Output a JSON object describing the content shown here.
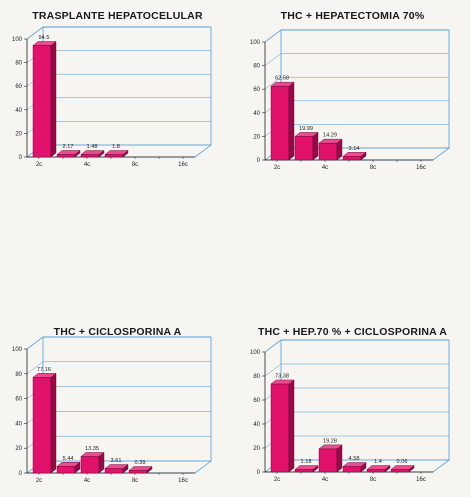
{
  "chart_data": [
    {
      "type": "bar",
      "title": "TRASPLANTE HEPATOCELULAR",
      "categories": [
        "2c",
        "",
        "4c",
        "",
        "8c",
        "",
        "16c"
      ],
      "values": [
        94.5,
        2.17,
        1.48,
        1.8,
        null,
        null,
        null
      ],
      "value_labels": [
        "94.5",
        "2.17",
        "1.48",
        "1.8",
        "",
        "",
        ""
      ],
      "yticks": [
        "0",
        "20",
        "40",
        "60",
        "80",
        "100"
      ],
      "ylim": [
        0,
        100
      ],
      "grid": true,
      "xlabel": "",
      "ylabel": "",
      "bar_color": "#e0126b"
    },
    {
      "type": "bar",
      "title": "THC + HEPATECTOMIA 70%",
      "categories": [
        "2c",
        "",
        "4c",
        "",
        "8c",
        "",
        "16c"
      ],
      "values": [
        62.58,
        19.99,
        14.29,
        3.14,
        null,
        null,
        null
      ],
      "value_labels": [
        "62.58",
        "19.99",
        "14.29",
        "3.14",
        "",
        "",
        ""
      ],
      "yticks": [
        "0",
        "20",
        "40",
        "60",
        "80",
        "100"
      ],
      "ylim": [
        0,
        100
      ],
      "grid": true,
      "xlabel": "",
      "ylabel": "",
      "bar_color": "#e0126b"
    },
    {
      "type": "bar",
      "title": "THC + CICLOSPORINA A",
      "categories": [
        "2c",
        "",
        "4c",
        "",
        "8c",
        "",
        "16c"
      ],
      "values": [
        77.16,
        5.44,
        13.35,
        3.61,
        0.39,
        null,
        null
      ],
      "value_labels": [
        "77.16",
        "5.44",
        "13.35",
        "3.61",
        "0.39",
        "",
        ""
      ],
      "yticks": [
        "0",
        "20",
        "40",
        "60",
        "80",
        "100"
      ],
      "ylim": [
        0,
        100
      ],
      "grid": true,
      "xlabel": "",
      "ylabel": "",
      "bar_color": "#e0126b"
    },
    {
      "type": "bar",
      "title": "THC + HEP.70 % + CICLOSPORINA A",
      "categories": [
        "2c",
        "",
        "4c",
        "",
        "8c",
        "",
        "16c"
      ],
      "values": [
        73.38,
        1.18,
        19.28,
        4.58,
        1.4,
        0.06,
        null
      ],
      "value_labels": [
        "73.38",
        "1.18",
        "19.28",
        "4.58",
        "1.4",
        "0.06",
        ""
      ],
      "yticks": [
        "0",
        "20",
        "40",
        "60",
        "80",
        "100"
      ],
      "ylim": [
        0,
        100
      ],
      "grid": true,
      "xlabel": "",
      "ylabel": "",
      "bar_color": "#e0126b"
    }
  ]
}
